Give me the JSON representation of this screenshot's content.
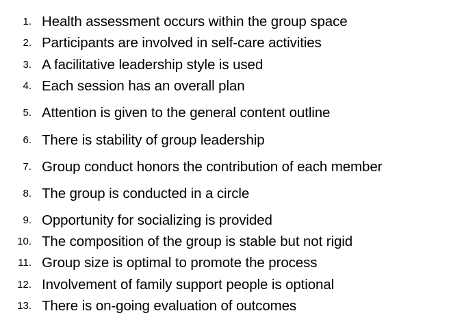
{
  "list": {
    "items": [
      {
        "number": "1.",
        "text": "Health assessment occurs within the group space"
      },
      {
        "number": "2.",
        "text": "Participants are involved in self-care activities"
      },
      {
        "number": "3.",
        "text": "A facilitative leadership style is used"
      },
      {
        "number": "4.",
        "text": "Each session has an overall plan"
      },
      {
        "number": "5.",
        "text": "Attention is given to the general content outline"
      },
      {
        "number": "6.",
        "text": "There is stability of group leadership"
      },
      {
        "number": "7.",
        "text": "Group conduct honors the contribution of each member"
      },
      {
        "number": "8.",
        "text": "The group is conducted in a circle"
      },
      {
        "number": "9.",
        "text": "Opportunity for socializing is provided"
      },
      {
        "number": "10.",
        "text": "The composition of the group is stable but not rigid"
      },
      {
        "number": "11.",
        "text": "Group size is optimal to promote the process"
      },
      {
        "number": "12.",
        "text": "Involvement of family support people is optional"
      },
      {
        "number": "13.",
        "text": "There is on-going evaluation of outcomes"
      }
    ]
  }
}
